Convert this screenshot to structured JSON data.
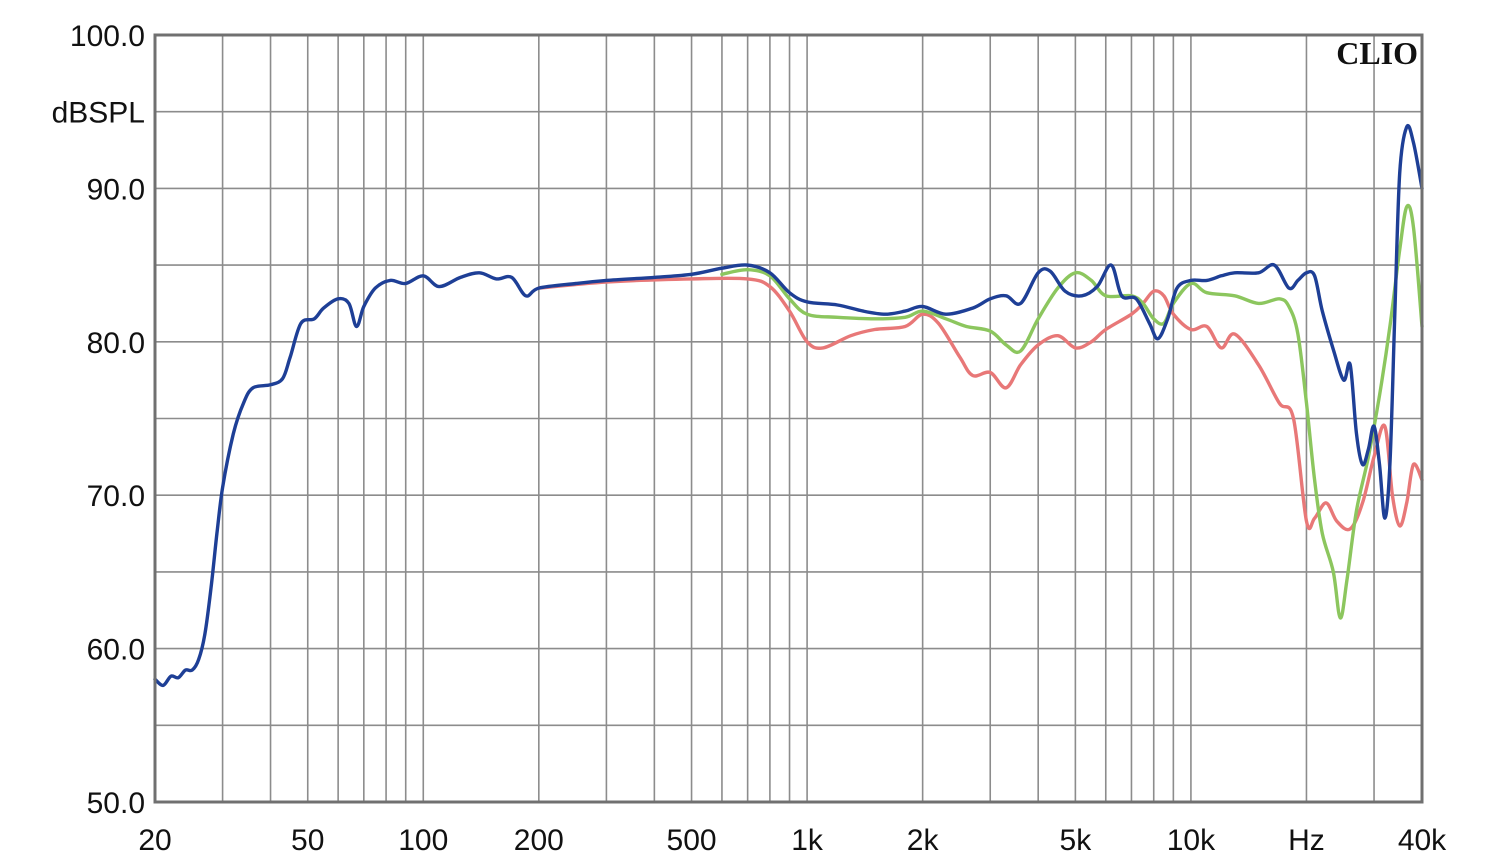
{
  "chart_data": {
    "type": "line",
    "title": "",
    "brand": "CLIO",
    "ylabel": "dBSPL",
    "xlabel": "Hz",
    "x_scale": "log",
    "xlim": [
      20,
      40000
    ],
    "ylim": [
      50,
      100
    ],
    "y_ticks": [
      {
        "value": 100,
        "label": "100.0"
      },
      {
        "value": 90,
        "label": "90.0"
      },
      {
        "value": 80,
        "label": "80.0"
      },
      {
        "value": 70,
        "label": "70.0"
      },
      {
        "value": 60,
        "label": "60.0"
      },
      {
        "value": 50,
        "label": "50.0"
      }
    ],
    "x_ticks": [
      {
        "value": 20,
        "label": "20"
      },
      {
        "value": 50,
        "label": "50"
      },
      {
        "value": 100,
        "label": "100"
      },
      {
        "value": 200,
        "label": "200"
      },
      {
        "value": 500,
        "label": "500"
      },
      {
        "value": 1000,
        "label": "1k"
      },
      {
        "value": 2000,
        "label": "2k"
      },
      {
        "value": 5000,
        "label": "5k"
      },
      {
        "value": 10000,
        "label": "10k"
      },
      {
        "value": 20000,
        "label": "Hz"
      },
      {
        "value": 40000,
        "label": "40k"
      }
    ],
    "grid": true,
    "series": [
      {
        "color": "#e87878",
        "points": [
          [
            200,
            83.5
          ],
          [
            300,
            83.9
          ],
          [
            500,
            84.1
          ],
          [
            700,
            84.1
          ],
          [
            800,
            83.6
          ],
          [
            900,
            82.0
          ],
          [
            1000,
            80.0
          ],
          [
            1100,
            79.6
          ],
          [
            1300,
            80.4
          ],
          [
            1500,
            80.8
          ],
          [
            1800,
            81.0
          ],
          [
            2000,
            81.8
          ],
          [
            2200,
            81.2
          ],
          [
            2500,
            79.0
          ],
          [
            2700,
            77.8
          ],
          [
            3000,
            78.0
          ],
          [
            3300,
            77.0
          ],
          [
            3600,
            78.5
          ],
          [
            4000,
            79.8
          ],
          [
            4500,
            80.4
          ],
          [
            5000,
            79.6
          ],
          [
            5500,
            80.0
          ],
          [
            6000,
            80.8
          ],
          [
            7000,
            81.8
          ],
          [
            7500,
            82.5
          ],
          [
            8000,
            83.3
          ],
          [
            8500,
            83.0
          ],
          [
            9000,
            81.8
          ],
          [
            10000,
            80.8
          ],
          [
            11000,
            81.0
          ],
          [
            12000,
            79.6
          ],
          [
            13000,
            80.5
          ],
          [
            15000,
            78.5
          ],
          [
            17000,
            76.0
          ],
          [
            18500,
            75.0
          ],
          [
            20000,
            68.3
          ],
          [
            21000,
            68.5
          ],
          [
            22500,
            69.5
          ],
          [
            24000,
            68.3
          ],
          [
            26000,
            67.8
          ],
          [
            28000,
            69.5
          ],
          [
            30000,
            72.5
          ],
          [
            32000,
            74.5
          ],
          [
            33500,
            70.0
          ],
          [
            35000,
            68.0
          ],
          [
            36500,
            69.5
          ],
          [
            38000,
            72.0
          ],
          [
            40000,
            71.0
          ]
        ]
      },
      {
        "color": "#8cc65e",
        "points": [
          [
            600,
            84.4
          ],
          [
            700,
            84.7
          ],
          [
            800,
            84.3
          ],
          [
            900,
            82.8
          ],
          [
            1000,
            81.8
          ],
          [
            1200,
            81.6
          ],
          [
            1500,
            81.5
          ],
          [
            1800,
            81.6
          ],
          [
            2000,
            82.0
          ],
          [
            2300,
            81.5
          ],
          [
            2600,
            81.0
          ],
          [
            3000,
            80.7
          ],
          [
            3300,
            79.8
          ],
          [
            3600,
            79.4
          ],
          [
            4000,
            81.5
          ],
          [
            4500,
            83.5
          ],
          [
            5000,
            84.5
          ],
          [
            5500,
            84.0
          ],
          [
            6000,
            83.0
          ],
          [
            7000,
            83.0
          ],
          [
            7500,
            82.5
          ],
          [
            8000,
            81.5
          ],
          [
            8500,
            81.2
          ],
          [
            9000,
            82.5
          ],
          [
            10000,
            83.8
          ],
          [
            11000,
            83.2
          ],
          [
            13000,
            83.0
          ],
          [
            15000,
            82.5
          ],
          [
            17000,
            82.8
          ],
          [
            18000,
            82.3
          ],
          [
            19000,
            80.5
          ],
          [
            20000,
            76.0
          ],
          [
            21000,
            71.0
          ],
          [
            22000,
            67.5
          ],
          [
            23500,
            65.0
          ],
          [
            24500,
            62.0
          ],
          [
            25500,
            64.5
          ],
          [
            27000,
            69.0
          ],
          [
            29000,
            72.5
          ],
          [
            31000,
            76.5
          ],
          [
            33000,
            81.0
          ],
          [
            35000,
            86.0
          ],
          [
            36500,
            88.8
          ],
          [
            38000,
            87.5
          ],
          [
            40000,
            81.0
          ]
        ]
      },
      {
        "color": "#1e3f96",
        "points": [
          [
            20,
            58.0
          ],
          [
            21,
            57.6
          ],
          [
            22,
            58.2
          ],
          [
            23,
            58.1
          ],
          [
            24,
            58.6
          ],
          [
            25,
            58.6
          ],
          [
            26,
            59.3
          ],
          [
            27,
            61.0
          ],
          [
            28,
            64.0
          ],
          [
            29,
            67.5
          ],
          [
            30,
            70.5
          ],
          [
            32,
            74.0
          ],
          [
            34,
            76.0
          ],
          [
            36,
            77.0
          ],
          [
            40,
            77.2
          ],
          [
            43,
            77.6
          ],
          [
            45,
            79.0
          ],
          [
            48,
            81.2
          ],
          [
            52,
            81.5
          ],
          [
            55,
            82.2
          ],
          [
            60,
            82.8
          ],
          [
            64,
            82.5
          ],
          [
            67,
            81.0
          ],
          [
            70,
            82.3
          ],
          [
            75,
            83.5
          ],
          [
            82,
            84.0
          ],
          [
            90,
            83.8
          ],
          [
            100,
            84.3
          ],
          [
            110,
            83.6
          ],
          [
            125,
            84.2
          ],
          [
            140,
            84.5
          ],
          [
            155,
            84.1
          ],
          [
            170,
            84.2
          ],
          [
            185,
            83.0
          ],
          [
            200,
            83.5
          ],
          [
            250,
            83.8
          ],
          [
            300,
            84.0
          ],
          [
            400,
            84.2
          ],
          [
            500,
            84.4
          ],
          [
            600,
            84.8
          ],
          [
            700,
            85.0
          ],
          [
            800,
            84.5
          ],
          [
            900,
            83.2
          ],
          [
            1000,
            82.6
          ],
          [
            1200,
            82.4
          ],
          [
            1400,
            82.0
          ],
          [
            1600,
            81.8
          ],
          [
            1800,
            82.0
          ],
          [
            2000,
            82.3
          ],
          [
            2300,
            81.8
          ],
          [
            2700,
            82.2
          ],
          [
            3000,
            82.8
          ],
          [
            3300,
            83.0
          ],
          [
            3600,
            82.5
          ],
          [
            4000,
            84.5
          ],
          [
            4300,
            84.6
          ],
          [
            4700,
            83.3
          ],
          [
            5200,
            83.0
          ],
          [
            5700,
            83.6
          ],
          [
            6200,
            85.0
          ],
          [
            6600,
            83.0
          ],
          [
            7200,
            82.8
          ],
          [
            7800,
            81.2
          ],
          [
            8200,
            80.2
          ],
          [
            8700,
            81.5
          ],
          [
            9200,
            83.5
          ],
          [
            10000,
            84.0
          ],
          [
            11000,
            84.0
          ],
          [
            12000,
            84.3
          ],
          [
            13000,
            84.5
          ],
          [
            15000,
            84.5
          ],
          [
            16500,
            85.0
          ],
          [
            18000,
            83.5
          ],
          [
            19000,
            84.0
          ],
          [
            20000,
            84.5
          ],
          [
            21000,
            84.3
          ],
          [
            22000,
            82.0
          ],
          [
            23500,
            79.5
          ],
          [
            25000,
            77.5
          ],
          [
            26000,
            78.5
          ],
          [
            27000,
            74.0
          ],
          [
            28000,
            72.0
          ],
          [
            29000,
            73.0
          ],
          [
            30000,
            74.5
          ],
          [
            31000,
            72.0
          ],
          [
            32000,
            68.5
          ],
          [
            33000,
            72.0
          ],
          [
            34000,
            82.0
          ],
          [
            35000,
            91.0
          ],
          [
            36500,
            94.0
          ],
          [
            38000,
            93.0
          ],
          [
            40000,
            90.0
          ]
        ]
      }
    ]
  }
}
